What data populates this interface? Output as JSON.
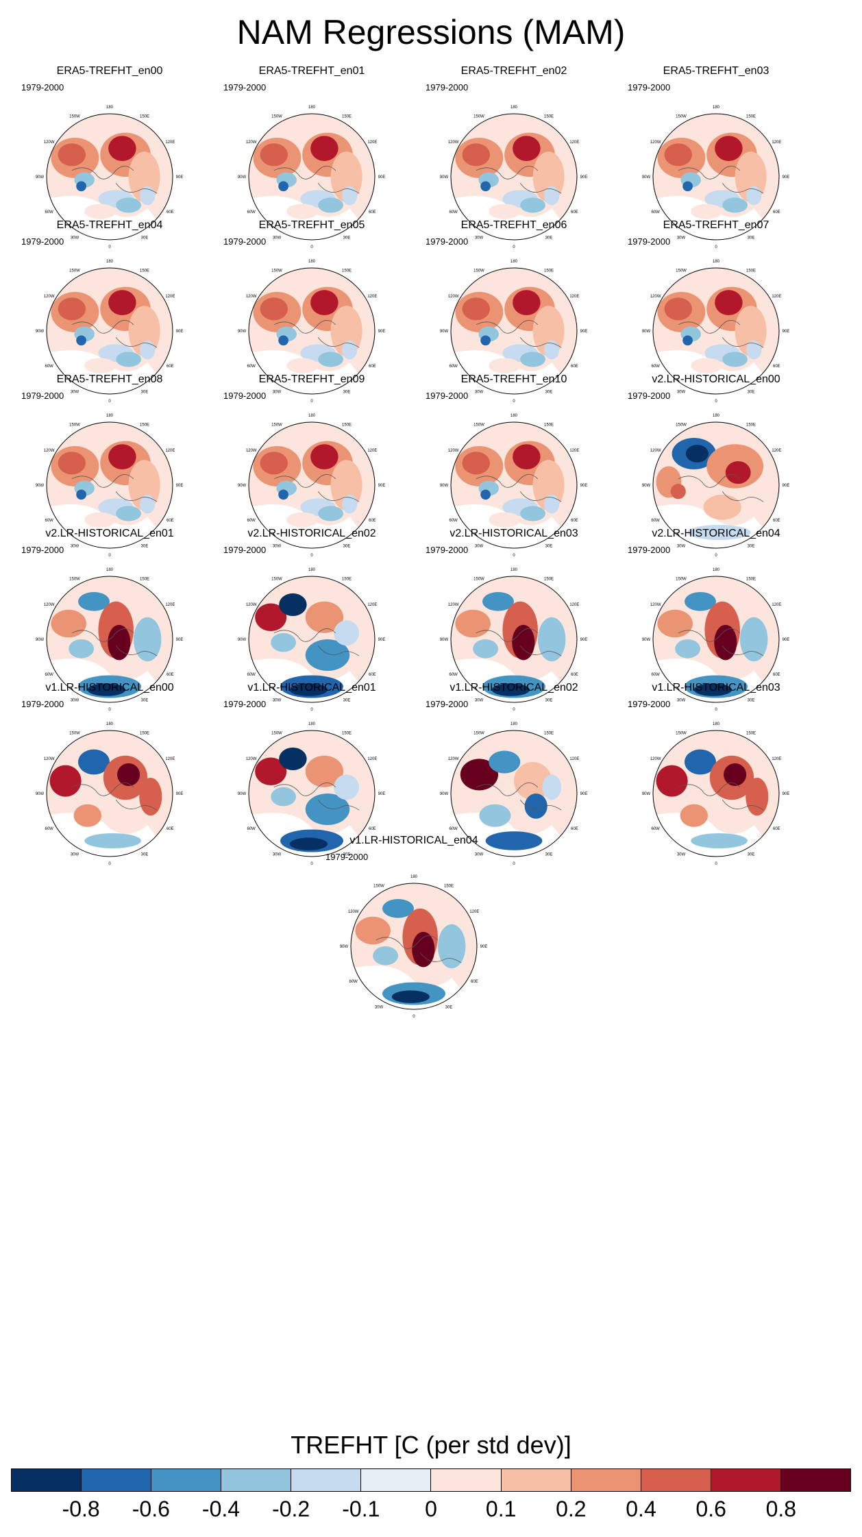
{
  "title": "NAM Regressions (MAM)",
  "colorbar": {
    "label": "TREFHT [C (per std dev)]",
    "ticks": [
      "-0.8",
      "-0.6",
      "-0.4",
      "-0.2",
      "-0.1",
      "0",
      "0.1",
      "0.2",
      "0.4",
      "0.6",
      "0.8"
    ],
    "colors": [
      "#053061",
      "#2166ac",
      "#4393c3",
      "#92c5de",
      "#c6dbef",
      "#e8eef5",
      "#fbe5dc",
      "#f7c0a6",
      "#eb9473",
      "#d6604d",
      "#b2182b",
      "#67001f"
    ]
  },
  "chart_data": {
    "type": "heatmap",
    "projection": "north polar stereographic",
    "variable": "TREFHT",
    "units": "C (per std dev)",
    "period": "1979-2000",
    "lon_labels": [
      "180",
      "150E",
      "120E",
      "90E",
      "60E",
      "30E",
      "0",
      "30W",
      "60W",
      "90W",
      "120W",
      "150W"
    ],
    "panels": [
      {
        "name": "ERA5-TREFHT_en00",
        "period": "1979-2000",
        "pattern": "era5"
      },
      {
        "name": "ERA5-TREFHT_en01",
        "period": "1979-2000",
        "pattern": "era5"
      },
      {
        "name": "ERA5-TREFHT_en02",
        "period": "1979-2000",
        "pattern": "era5"
      },
      {
        "name": "ERA5-TREFHT_en03",
        "period": "1979-2000",
        "pattern": "era5"
      },
      {
        "name": "ERA5-TREFHT_en04",
        "period": "1979-2000",
        "pattern": "era5"
      },
      {
        "name": "ERA5-TREFHT_en05",
        "period": "1979-2000",
        "pattern": "era5"
      },
      {
        "name": "ERA5-TREFHT_en06",
        "period": "1979-2000",
        "pattern": "era5"
      },
      {
        "name": "ERA5-TREFHT_en07",
        "period": "1979-2000",
        "pattern": "era5"
      },
      {
        "name": "ERA5-TREFHT_en08",
        "period": "1979-2000",
        "pattern": "era5"
      },
      {
        "name": "ERA5-TREFHT_en09",
        "period": "1979-2000",
        "pattern": "era5"
      },
      {
        "name": "ERA5-TREFHT_en10",
        "period": "1979-2000",
        "pattern": "era5"
      },
      {
        "name": "v2.LR-HISTORICAL_en00",
        "period": "1979-2000",
        "pattern": "v2a"
      },
      {
        "name": "v2.LR-HISTORICAL_en01",
        "period": "1979-2000",
        "pattern": "v2b"
      },
      {
        "name": "v2.LR-HISTORICAL_en02",
        "period": "1979-2000",
        "pattern": "v2c"
      },
      {
        "name": "v2.LR-HISTORICAL_en03",
        "period": "1979-2000",
        "pattern": "v2b"
      },
      {
        "name": "v2.LR-HISTORICAL_en04",
        "period": "1979-2000",
        "pattern": "v2b"
      },
      {
        "name": "v1.LR-HISTORICAL_en00",
        "period": "1979-2000",
        "pattern": "v1a"
      },
      {
        "name": "v1.LR-HISTORICAL_en01",
        "period": "1979-2000",
        "pattern": "v2c"
      },
      {
        "name": "v1.LR-HISTORICAL_en02",
        "period": "1979-2000",
        "pattern": "v1b"
      },
      {
        "name": "v1.LR-HISTORICAL_en03",
        "period": "1979-2000",
        "pattern": "v1a"
      },
      {
        "name": "v1.LR-HISTORICAL_en04",
        "period": "1979-2000",
        "pattern": "v2b"
      }
    ]
  }
}
